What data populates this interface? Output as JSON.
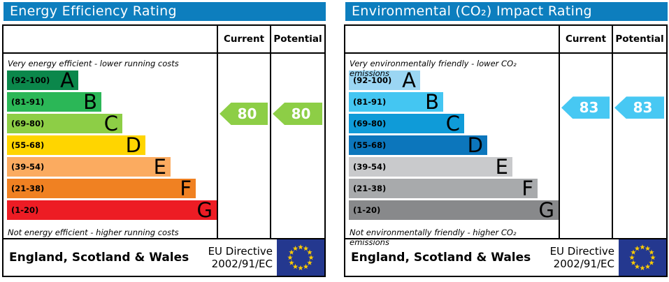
{
  "eu_flag": {
    "bg": "#24388f",
    "stars": "#ffcc00"
  },
  "chart_data": [
    {
      "type": "epc-band-rating",
      "title": "Energy Efficiency Rating",
      "title_bg": "#0d7ebe",
      "columns": [
        "Current",
        "Potential"
      ],
      "top_note": "Very energy efficient - lower running costs",
      "bottom_note": "Not energy efficient - higher running costs",
      "bands": [
        {
          "letter": "A",
          "label": "(92-100)",
          "min": 92,
          "max": 100,
          "color": "#0b874b",
          "width_pct": 34
        },
        {
          "letter": "B",
          "label": "(81-91)",
          "min": 81,
          "max": 91,
          "color": "#2bb757",
          "width_pct": 45
        },
        {
          "letter": "C",
          "label": "(69-80)",
          "min": 69,
          "max": 80,
          "color": "#8dce46",
          "width_pct": 55
        },
        {
          "letter": "D",
          "label": "(55-68)",
          "min": 55,
          "max": 68,
          "color": "#ffd500",
          "width_pct": 66
        },
        {
          "letter": "E",
          "label": "(39-54)",
          "min": 39,
          "max": 54,
          "color": "#fbab60",
          "width_pct": 78
        },
        {
          "letter": "F",
          "label": "(21-38)",
          "min": 21,
          "max": 38,
          "color": "#f08122",
          "width_pct": 90
        },
        {
          "letter": "G",
          "label": "(1-20)",
          "min": 1,
          "max": 20,
          "color": "#ed1c24",
          "width_pct": 100
        }
      ],
      "current": {
        "value": 80,
        "arrow_color": "#8dce46"
      },
      "potential": {
        "value": 80,
        "arrow_color": "#8dce46"
      },
      "footer": {
        "region": "England, Scotland & Wales",
        "directive": [
          "EU Directive",
          "2002/91/EC"
        ]
      }
    },
    {
      "type": "epc-band-rating",
      "title": "Environmental (CO₂) Impact Rating",
      "title_bg": "#0d7ebe",
      "columns": [
        "Current",
        "Potential"
      ],
      "top_note": "Very environmentally friendly - lower CO₂ emissions",
      "bottom_note": "Not environmentally friendly - higher CO₂ emissions",
      "bands": [
        {
          "letter": "A",
          "label": "(92-100)",
          "min": 92,
          "max": 100,
          "color": "#9bd6f3",
          "width_pct": 34
        },
        {
          "letter": "B",
          "label": "(81-91)",
          "min": 81,
          "max": 91,
          "color": "#44c6f2",
          "width_pct": 45
        },
        {
          "letter": "C",
          "label": "(69-80)",
          "min": 69,
          "max": 80,
          "color": "#0f9bd8",
          "width_pct": 55
        },
        {
          "letter": "D",
          "label": "(55-68)",
          "min": 55,
          "max": 68,
          "color": "#0c76bc",
          "width_pct": 66
        },
        {
          "letter": "E",
          "label": "(39-54)",
          "min": 39,
          "max": 54,
          "color": "#c9cacc",
          "width_pct": 78
        },
        {
          "letter": "F",
          "label": "(21-38)",
          "min": 21,
          "max": 38,
          "color": "#a8aaac",
          "width_pct": 90
        },
        {
          "letter": "G",
          "label": "(1-20)",
          "min": 1,
          "max": 20,
          "color": "#88898b",
          "width_pct": 100
        }
      ],
      "current": {
        "value": 83,
        "arrow_color": "#47c8f3"
      },
      "potential": {
        "value": 83,
        "arrow_color": "#47c8f3"
      },
      "footer": {
        "region": "England, Scotland & Wales",
        "directive": [
          "EU Directive",
          "2002/91/EC"
        ]
      }
    }
  ]
}
